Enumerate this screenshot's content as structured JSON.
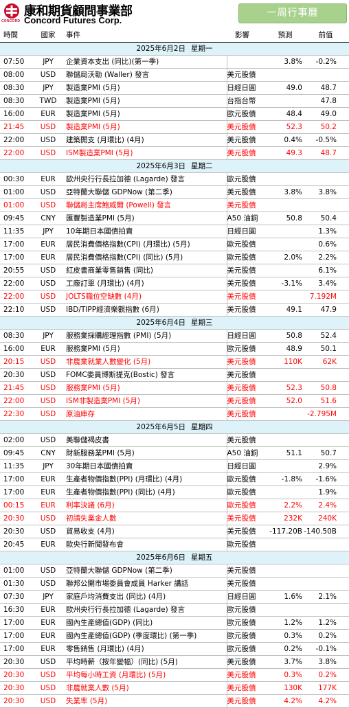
{
  "header": {
    "logo_cn": "康和期貨顧問事業部",
    "logo_en": "Concord Futures Corp.",
    "logo_sub": "CONCORD",
    "badge": "一周行事曆"
  },
  "columns": {
    "time": "時間",
    "country": "國家",
    "event": "事件",
    "impact": "影響",
    "forecast": "預測",
    "previous": "前值"
  },
  "days": [
    {
      "date": "2025年6月2日",
      "weekday": "星期一",
      "rows": [
        {
          "time": "07:50",
          "country": "JPY",
          "event": "企業資本支出 (同比)(第一季)",
          "impact": "",
          "forecast": "3.8%",
          "previous": "-0.2%",
          "hl": false
        },
        {
          "time": "08:00",
          "country": "USD",
          "event": "聯儲局沃勒 (Waller) 發言",
          "impact": "美元股債",
          "forecast": "",
          "previous": "",
          "hl": false
        },
        {
          "time": "08:30",
          "country": "JPY",
          "event": "製造業PMI (5月)",
          "impact": "日經日圓",
          "forecast": "49.0",
          "previous": "48.7",
          "hl": false
        },
        {
          "time": "08:30",
          "country": "TWD",
          "event": "製造業PMI (5月)",
          "impact": "台指台幣",
          "forecast": "",
          "previous": "47.8",
          "hl": false
        },
        {
          "time": "16:00",
          "country": "EUR",
          "event": "製造業PMI (5月)",
          "impact": "歐元股債",
          "forecast": "48.4",
          "previous": "49.0",
          "hl": false
        },
        {
          "time": "21:45",
          "country": "USD",
          "event": "製造業PMI (5月)",
          "impact": "美元股債",
          "forecast": "52.3",
          "previous": "50.2",
          "hl": true
        },
        {
          "time": "22:00",
          "country": "USD",
          "event": "建築開支 (月環比) (4月)",
          "impact": "美元股債",
          "forecast": "0.4%",
          "previous": "-0.5%",
          "hl": false
        },
        {
          "time": "22:00",
          "country": "USD",
          "event": "ISM製造業PMI (5月)",
          "impact": "美元股債",
          "forecast": "49.3",
          "previous": "48.7",
          "hl": true
        }
      ]
    },
    {
      "date": "2025年6月3日",
      "weekday": "星期二",
      "rows": [
        {
          "time": "00:30",
          "country": "EUR",
          "event": "歐州央行行長拉加德 (Lagarde) 發言",
          "impact": "歐元股債",
          "forecast": "",
          "previous": "",
          "hl": false
        },
        {
          "time": "01:00",
          "country": "USD",
          "event": "亞特蘭大聯儲 GDPNow (第二季)",
          "impact": "美元股債",
          "forecast": "3.8%",
          "previous": "3.8%",
          "hl": false
        },
        {
          "time": "01:00",
          "country": "USD",
          "event": "聯儲局主席鮑威爾 (Powell) 發言",
          "impact": "美元股債",
          "forecast": "",
          "previous": "",
          "hl": true
        },
        {
          "time": "09:45",
          "country": "CNY",
          "event": "匯豐製造業PMI (5月)",
          "impact": "A50 油銅",
          "forecast": "50.8",
          "previous": "50.4",
          "hl": false
        },
        {
          "time": "11:35",
          "country": "JPY",
          "event": "10年期日本國債拍賣",
          "impact": "日經日圓",
          "forecast": "",
          "previous": "1.3%",
          "hl": false
        },
        {
          "time": "17:00",
          "country": "EUR",
          "event": "居民消費價格指數(CPI) (月環比) (5月)",
          "impact": "歐元股債",
          "forecast": "",
          "previous": "0.6%",
          "hl": false
        },
        {
          "time": "17:00",
          "country": "EUR",
          "event": "居民消費價格指數(CPI) (同比) (5月)",
          "impact": "歐元股債",
          "forecast": "2.0%",
          "previous": "2.2%",
          "hl": false
        },
        {
          "time": "20:55",
          "country": "USD",
          "event": "紅皮書商業零售銷售 (同比)",
          "impact": "美元股債",
          "forecast": "",
          "previous": "6.1%",
          "hl": false
        },
        {
          "time": "22:00",
          "country": "USD",
          "event": "工廠訂單 (月環比) (4月)",
          "impact": "美元股債",
          "forecast": "-3.1%",
          "previous": "3.4%",
          "hl": false
        },
        {
          "time": "22:00",
          "country": "USD",
          "event": "JOLTS職位空缺數 (4月)",
          "impact": "美元股債",
          "forecast": "",
          "previous": "7.192M",
          "hl": true
        },
        {
          "time": "22:10",
          "country": "USD",
          "event": "IBD/TIPP經濟樂觀指數 (6月)",
          "impact": "美元股債",
          "forecast": "49.1",
          "previous": "47.9",
          "hl": false
        }
      ]
    },
    {
      "date": "2025年6月4日",
      "weekday": "星期三",
      "rows": [
        {
          "time": "08:30",
          "country": "JPY",
          "event": "服務業採購經理指數 (PMI) (5月)",
          "impact": "日經日圓",
          "forecast": "50.8",
          "previous": "52.4",
          "hl": false
        },
        {
          "time": "16:00",
          "country": "EUR",
          "event": "服務業PMI (5月)",
          "impact": "歐元股債",
          "forecast": "48.9",
          "previous": "50.1",
          "hl": false
        },
        {
          "time": "20:15",
          "country": "USD",
          "event": "非農業就業人數變化 (5月)",
          "impact": "美元股債",
          "forecast": "110K",
          "previous": "62K",
          "hl": true
        },
        {
          "time": "20:30",
          "country": "USD",
          "event": "FOMC委員博斯提克(Bostic) 發言",
          "impact": "美元股債",
          "forecast": "",
          "previous": "",
          "hl": false
        },
        {
          "time": "21:45",
          "country": "USD",
          "event": "服務業PMI (5月)",
          "impact": "美元股債",
          "forecast": "52.3",
          "previous": "50.8",
          "hl": true
        },
        {
          "time": "22:00",
          "country": "USD",
          "event": "ISM非製造業PMI (5月)",
          "impact": "美元股債",
          "forecast": "52.0",
          "previous": "51.6",
          "hl": true
        },
        {
          "time": "22:30",
          "country": "USD",
          "event": "原油庫存",
          "impact": "美元股債",
          "forecast": "",
          "previous": "-2.795M",
          "hl": true
        }
      ]
    },
    {
      "date": "2025年6月5日",
      "weekday": "星期四",
      "rows": [
        {
          "time": "02:00",
          "country": "USD",
          "event": "美聯儲褐皮書",
          "impact": "美元股債",
          "forecast": "",
          "previous": "",
          "hl": false
        },
        {
          "time": "09:45",
          "country": "CNY",
          "event": "財新服務業PMI (5月)",
          "impact": "A50 油銅",
          "forecast": "51.1",
          "previous": "50.7",
          "hl": false
        },
        {
          "time": "11:35",
          "country": "JPY",
          "event": "30年期日本國債拍賣",
          "impact": "日經日圓",
          "forecast": "",
          "previous": "2.9%",
          "hl": false
        },
        {
          "time": "17:00",
          "country": "EUR",
          "event": "生產者物價指數(PPI) (月環比) (4月)",
          "impact": "歐元股債",
          "forecast": "-1.8%",
          "previous": "-1.6%",
          "hl": false
        },
        {
          "time": "17:00",
          "country": "EUR",
          "event": "生產者物價指數(PPI) (同比) (4月)",
          "impact": "歐元股債",
          "forecast": "",
          "previous": "1.9%",
          "hl": false
        },
        {
          "time": "00:15",
          "country": "EUR",
          "event": "利率決議 (6月)",
          "impact": "歐元股債",
          "forecast": "2.2%",
          "previous": "2.4%",
          "hl": true
        },
        {
          "time": "20:30",
          "country": "USD",
          "event": "初請失業金人數",
          "impact": "美元股債",
          "forecast": "232K",
          "previous": "240K",
          "hl": true
        },
        {
          "time": "20:30",
          "country": "USD",
          "event": "貿易收支 (4月)",
          "impact": "美元股債",
          "forecast": "-117.20B",
          "previous": "-140.50B",
          "hl": false
        },
        {
          "time": "20:45",
          "country": "EUR",
          "event": "歐央行新聞發布會",
          "impact": "歐元股債",
          "forecast": "",
          "previous": "",
          "hl": false
        }
      ]
    },
    {
      "date": "2025年6月6日",
      "weekday": "星期五",
      "rows": [
        {
          "time": "01:00",
          "country": "USD",
          "event": "亞特蘭大聯儲 GDPNow (第二季)",
          "impact": "美元股債",
          "forecast": "",
          "previous": "",
          "hl": false
        },
        {
          "time": "01:30",
          "country": "USD",
          "event": "聯邦公開市場委員會成員 Harker 講話",
          "impact": "美元股債",
          "forecast": "",
          "previous": "",
          "hl": false
        },
        {
          "time": "07:30",
          "country": "JPY",
          "event": "家庭戶均消費支出 (同比) (4月)",
          "impact": "日經日圓",
          "forecast": "1.6%",
          "previous": "2.1%",
          "hl": false
        },
        {
          "time": "16:30",
          "country": "EUR",
          "event": "歐州央行行長拉加德 (Lagarde) 發言",
          "impact": "歐元股債",
          "forecast": "",
          "previous": "",
          "hl": false
        },
        {
          "time": "17:00",
          "country": "EUR",
          "event": "國內生產總值(GDP) (同比)",
          "impact": "歐元股債",
          "forecast": "1.2%",
          "previous": "1.2%",
          "hl": false
        },
        {
          "time": "17:00",
          "country": "EUR",
          "event": "國內生產總值(GDP) (季度環比) (第一季)",
          "impact": "歐元股債",
          "forecast": "0.3%",
          "previous": "0.2%",
          "hl": false
        },
        {
          "time": "17:00",
          "country": "EUR",
          "event": "零售銷售 (月環比) (4月)",
          "impact": "歐元股債",
          "forecast": "0.2%",
          "previous": "-0.1%",
          "hl": false
        },
        {
          "time": "20:30",
          "country": "USD",
          "event": "平均時薪（按年變幅）(同比) (5月)",
          "impact": "美元股債",
          "forecast": "3.7%",
          "previous": "3.8%",
          "hl": false
        },
        {
          "time": "20:30",
          "country": "USD",
          "event": "平均每小時工資 (月環比) (5月)",
          "impact": "美元股債",
          "forecast": "0.3%",
          "previous": "0.2%",
          "hl": true
        },
        {
          "time": "20:30",
          "country": "USD",
          "event": "非農就業人數 (5月)",
          "impact": "美元股債",
          "forecast": "130K",
          "previous": "177K",
          "hl": true
        },
        {
          "time": "20:30",
          "country": "USD",
          "event": "失業率 (5月)",
          "impact": "美元股債",
          "forecast": "4.2%",
          "previous": "4.2%",
          "hl": true
        }
      ]
    }
  ]
}
